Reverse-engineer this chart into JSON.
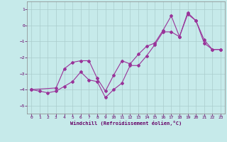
{
  "xlabel": "Windchill (Refroidissement éolien,°C)",
  "xlim": [
    -0.5,
    23.5
  ],
  "ylim": [
    -5.5,
    1.5
  ],
  "yticks": [
    1,
    0,
    -1,
    -2,
    -3,
    -4,
    -5
  ],
  "xticks": [
    0,
    1,
    2,
    3,
    4,
    5,
    6,
    7,
    8,
    9,
    10,
    11,
    12,
    13,
    14,
    15,
    16,
    17,
    18,
    19,
    20,
    21,
    22,
    23
  ],
  "background_color": "#c6eaea",
  "grid_color": "#aacccc",
  "line_color": "#993399",
  "line1_x": [
    0,
    1,
    2,
    3,
    4,
    5,
    6,
    7,
    8,
    9,
    10,
    11,
    12,
    13,
    14,
    15,
    16,
    17,
    18,
    19,
    20,
    21,
    22,
    23
  ],
  "line1_y": [
    -4.0,
    -4.1,
    -4.2,
    -4.1,
    -3.8,
    -3.5,
    -2.9,
    -3.4,
    -3.5,
    -4.5,
    -4.0,
    -3.6,
    -2.5,
    -2.5,
    -1.9,
    -1.2,
    -0.4,
    -0.4,
    -0.7,
    0.7,
    0.3,
    -0.9,
    -1.5,
    -1.5
  ],
  "line2_x": [
    0,
    3,
    4,
    5,
    6,
    7,
    8,
    9,
    10,
    11,
    12,
    13,
    14,
    15,
    16,
    17,
    18,
    19,
    20,
    21,
    22,
    23
  ],
  "line2_y": [
    -4.0,
    -3.9,
    -2.7,
    -2.3,
    -2.2,
    -2.2,
    -3.3,
    -4.1,
    -3.1,
    -2.2,
    -2.4,
    -1.8,
    -1.3,
    -1.1,
    -0.3,
    0.6,
    -0.7,
    0.8,
    0.3,
    -1.1,
    -1.5,
    -1.5
  ],
  "marker": "D",
  "markersize": 2,
  "linewidth": 0.8,
  "tick_labelsize": 4.5,
  "xlabel_fontsize": 5.0,
  "tick_color": "#660066",
  "spine_color": "#888888"
}
